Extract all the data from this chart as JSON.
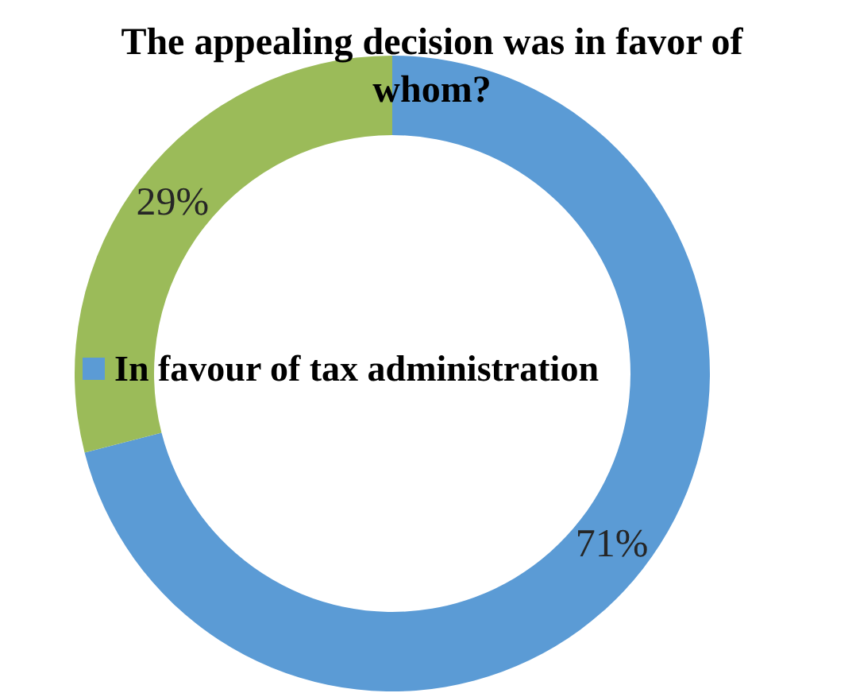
{
  "chart_data": {
    "type": "donut",
    "title": "The appealing decision was in favor of whom?",
    "categories": [
      "In favour of tax administration",
      null
    ],
    "values": [
      71,
      29
    ],
    "colors": [
      "#5b9bd5",
      "#9bbb59"
    ],
    "value_labels": [
      "71%",
      "29%"
    ],
    "legend": "left"
  }
}
